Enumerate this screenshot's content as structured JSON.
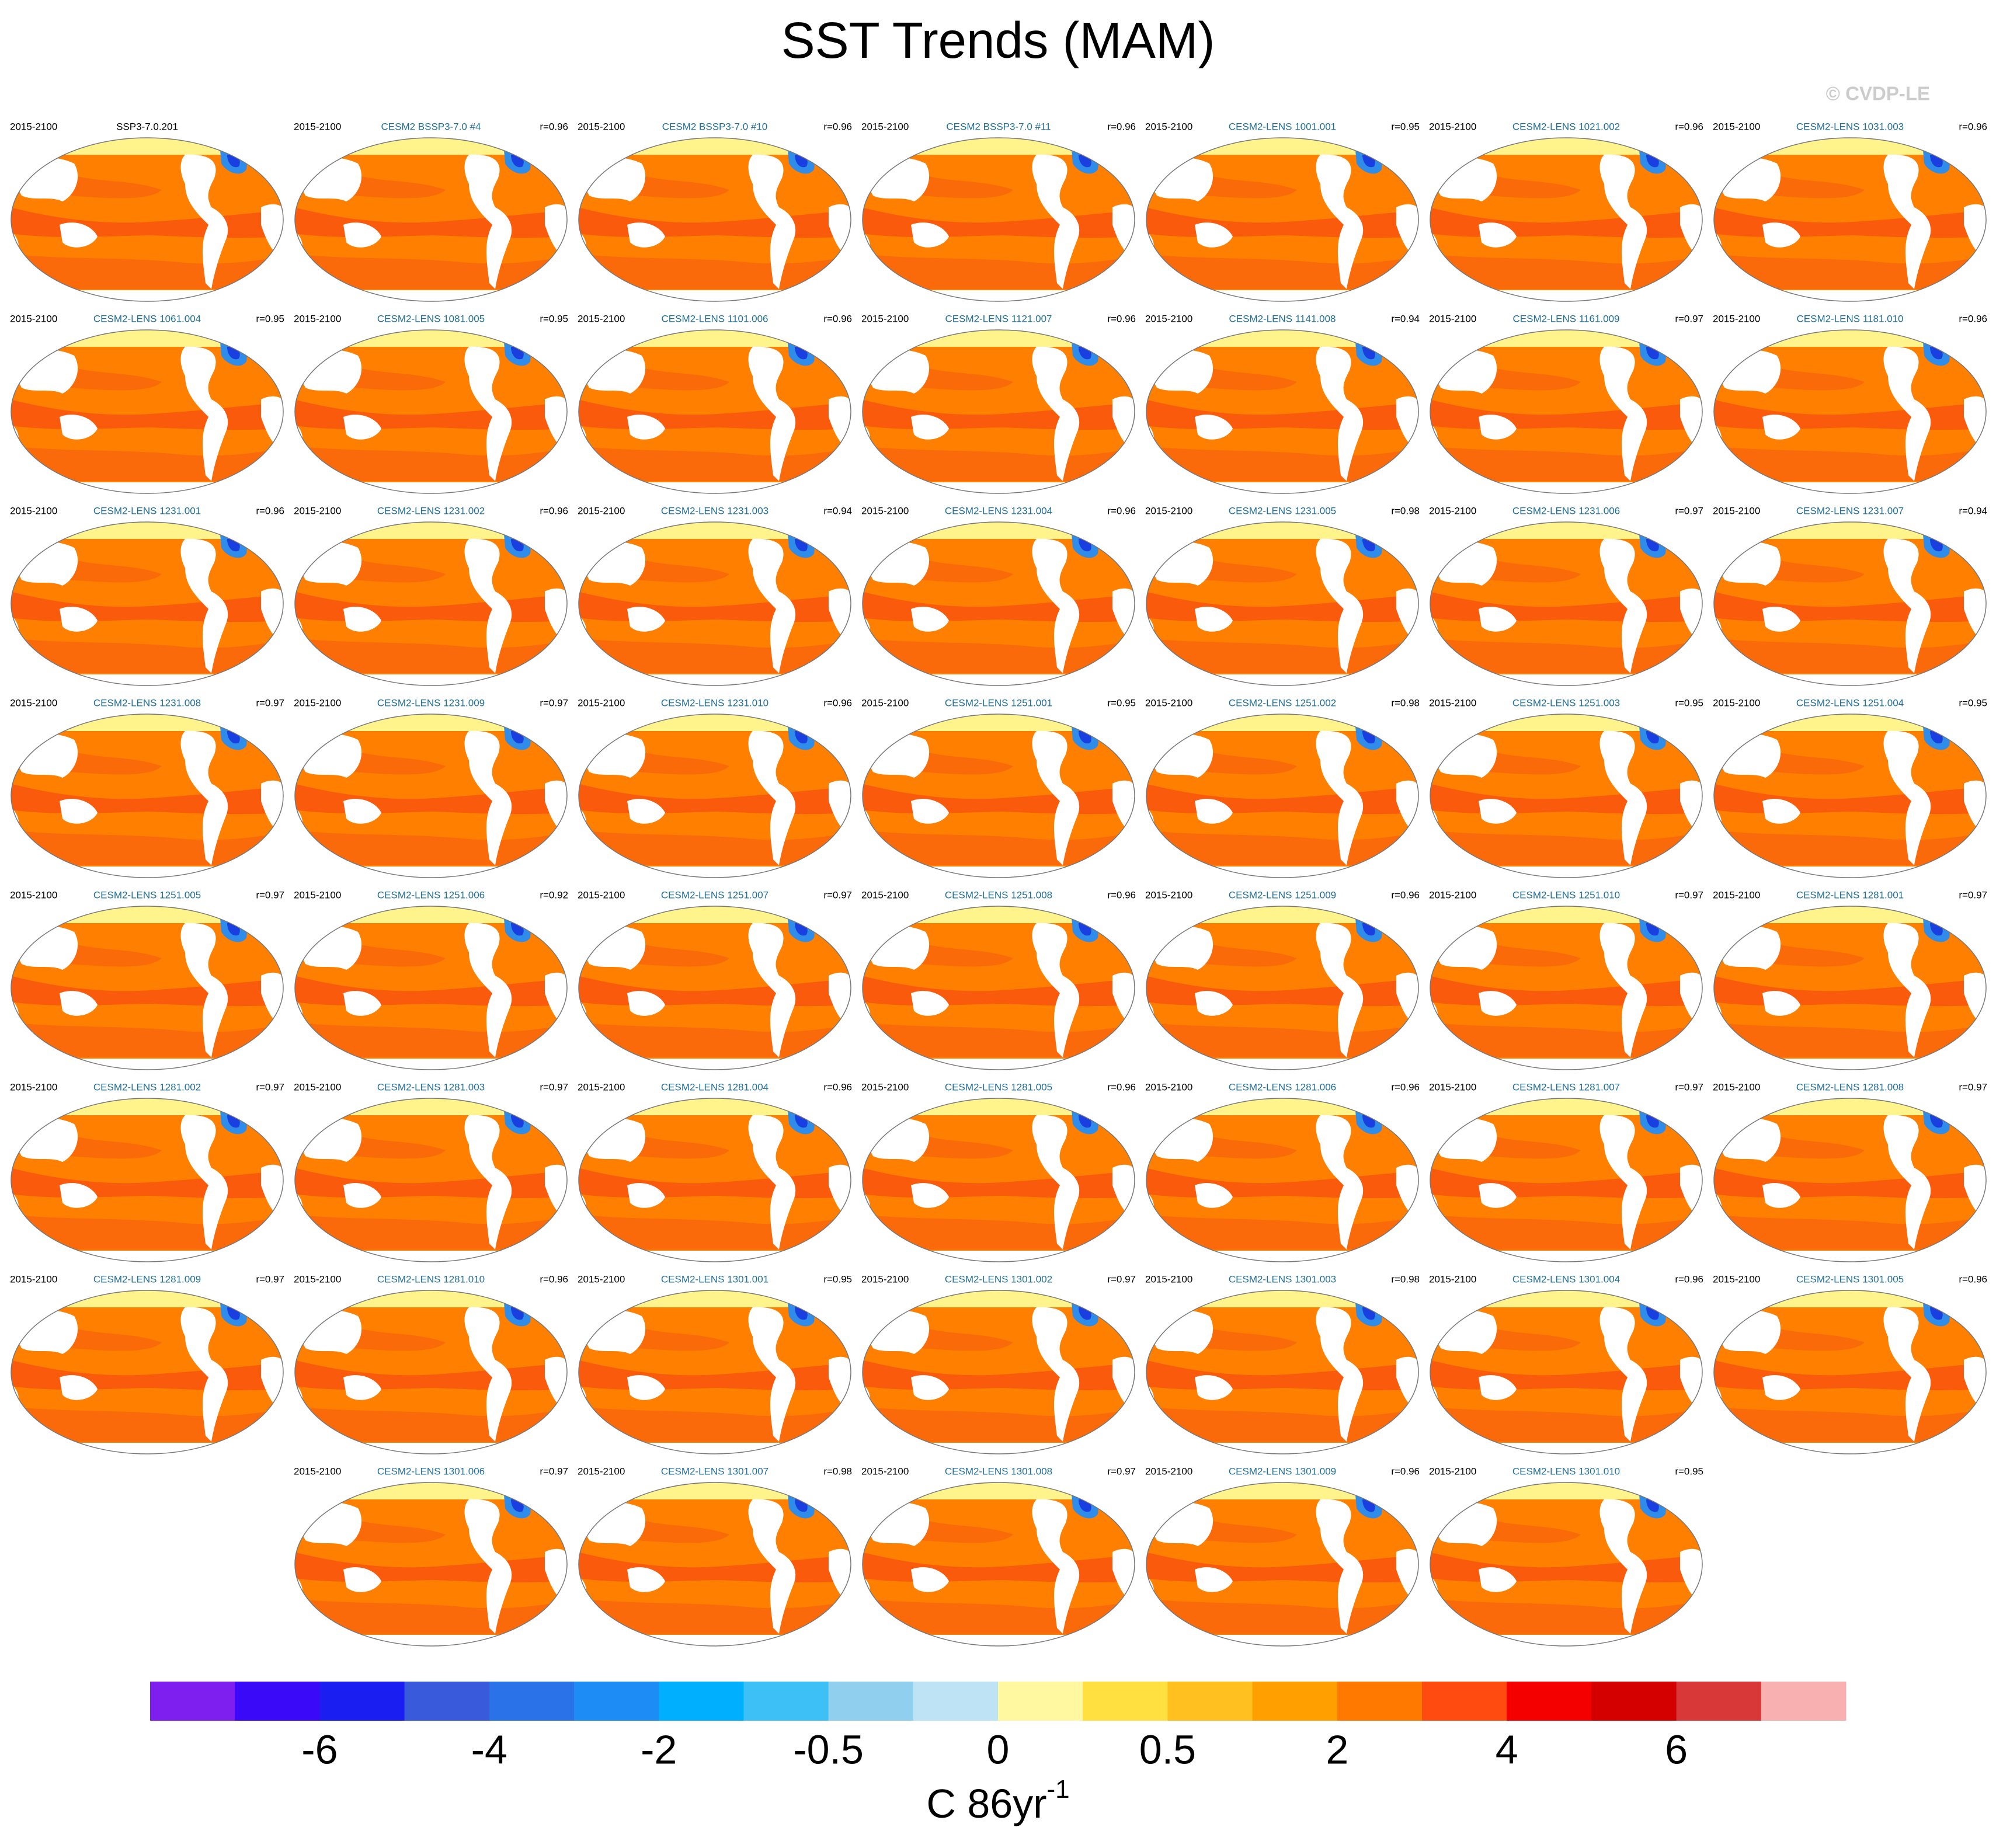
{
  "header": {
    "title": "SST Trends (MAM)",
    "copyright": "© CVDP-LE"
  },
  "panels": [
    {
      "title": "SSP3-7.0.201",
      "period": "2015-2100"
    },
    {
      "title": "CESM2 BSSP3-7.0 #4",
      "period": "2015-2100",
      "r": "r=0.96"
    },
    {
      "title": "CESM2 BSSP3-7.0 #10",
      "period": "2015-2100",
      "r": "r=0.96"
    },
    {
      "title": "CESM2 BSSP3-7.0 #11",
      "period": "2015-2100",
      "r": "r=0.96"
    },
    {
      "title": "CESM2-LENS 1001.001",
      "period": "2015-2100",
      "r": "r=0.95"
    },
    {
      "title": "CESM2-LENS 1021.002",
      "period": "2015-2100",
      "r": "r=0.96"
    },
    {
      "title": "CESM2-LENS 1031.003",
      "period": "2015-2100",
      "r": "r=0.96"
    },
    {
      "title": "CESM2-LENS 1061.004",
      "period": "2015-2100",
      "r": "r=0.95"
    },
    {
      "title": "CESM2-LENS 1081.005",
      "period": "2015-2100",
      "r": "r=0.95"
    },
    {
      "title": "CESM2-LENS 1101.006",
      "period": "2015-2100",
      "r": "r=0.96"
    },
    {
      "title": "CESM2-LENS 1121.007",
      "period": "2015-2100",
      "r": "r=0.96"
    },
    {
      "title": "CESM2-LENS 1141.008",
      "period": "2015-2100",
      "r": "r=0.94"
    },
    {
      "title": "CESM2-LENS 1161.009",
      "period": "2015-2100",
      "r": "r=0.97"
    },
    {
      "title": "CESM2-LENS 1181.010",
      "period": "2015-2100",
      "r": "r=0.96"
    },
    {
      "title": "CESM2-LENS 1231.001",
      "period": "2015-2100",
      "r": "r=0.96"
    },
    {
      "title": "CESM2-LENS 1231.002",
      "period": "2015-2100",
      "r": "r=0.96"
    },
    {
      "title": "CESM2-LENS 1231.003",
      "period": "2015-2100",
      "r": "r=0.94"
    },
    {
      "title": "CESM2-LENS 1231.004",
      "period": "2015-2100",
      "r": "r=0.96"
    },
    {
      "title": "CESM2-LENS 1231.005",
      "period": "2015-2100",
      "r": "r=0.98"
    },
    {
      "title": "CESM2-LENS 1231.006",
      "period": "2015-2100",
      "r": "r=0.97"
    },
    {
      "title": "CESM2-LENS 1231.007",
      "period": "2015-2100",
      "r": "r=0.94"
    },
    {
      "title": "CESM2-LENS 1231.008",
      "period": "2015-2100",
      "r": "r=0.97"
    },
    {
      "title": "CESM2-LENS 1231.009",
      "period": "2015-2100",
      "r": "r=0.97"
    },
    {
      "title": "CESM2-LENS 1231.010",
      "period": "2015-2100",
      "r": "r=0.96"
    },
    {
      "title": "CESM2-LENS 1251.001",
      "period": "2015-2100",
      "r": "r=0.95"
    },
    {
      "title": "CESM2-LENS 1251.002",
      "period": "2015-2100",
      "r": "r=0.98"
    },
    {
      "title": "CESM2-LENS 1251.003",
      "period": "2015-2100",
      "r": "r=0.95"
    },
    {
      "title": "CESM2-LENS 1251.004",
      "period": "2015-2100",
      "r": "r=0.95"
    },
    {
      "title": "CESM2-LENS 1251.005",
      "period": "2015-2100",
      "r": "r=0.97"
    },
    {
      "title": "CESM2-LENS 1251.006",
      "period": "2015-2100",
      "r": "r=0.92"
    },
    {
      "title": "CESM2-LENS 1251.007",
      "period": "2015-2100",
      "r": "r=0.97"
    },
    {
      "title": "CESM2-LENS 1251.008",
      "period": "2015-2100",
      "r": "r=0.96"
    },
    {
      "title": "CESM2-LENS 1251.009",
      "period": "2015-2100",
      "r": "r=0.96"
    },
    {
      "title": "CESM2-LENS 1251.010",
      "period": "2015-2100",
      "r": "r=0.97"
    },
    {
      "title": "CESM2-LENS 1281.001",
      "period": "2015-2100",
      "r": "r=0.97"
    },
    {
      "title": "CESM2-LENS 1281.002",
      "period": "2015-2100",
      "r": "r=0.97"
    },
    {
      "title": "CESM2-LENS 1281.003",
      "period": "2015-2100",
      "r": "r=0.97"
    },
    {
      "title": "CESM2-LENS 1281.004",
      "period": "2015-2100",
      "r": "r=0.96"
    },
    {
      "title": "CESM2-LENS 1281.005",
      "period": "2015-2100",
      "r": "r=0.96"
    },
    {
      "title": "CESM2-LENS 1281.006",
      "period": "2015-2100",
      "r": "r=0.96"
    },
    {
      "title": "CESM2-LENS 1281.007",
      "period": "2015-2100",
      "r": "r=0.97"
    },
    {
      "title": "CESM2-LENS 1281.008",
      "period": "2015-2100",
      "r": "r=0.97"
    },
    {
      "title": "CESM2-LENS 1281.009",
      "period": "2015-2100",
      "r": "r=0.97"
    },
    {
      "title": "CESM2-LENS 1281.010",
      "period": "2015-2100",
      "r": "r=0.96"
    },
    {
      "title": "CESM2-LENS 1301.001",
      "period": "2015-2100",
      "r": "r=0.95"
    },
    {
      "title": "CESM2-LENS 1301.002",
      "period": "2015-2100",
      "r": "r=0.97"
    },
    {
      "title": "CESM2-LENS 1301.003",
      "period": "2015-2100",
      "r": "r=0.98"
    },
    {
      "title": "CESM2-LENS 1301.004",
      "period": "2015-2100",
      "r": "r=0.96"
    },
    {
      "title": "CESM2-LENS 1301.005",
      "period": "2015-2100",
      "r": "r=0.96"
    },
    {
      "title": "CESM2-LENS 1301.006",
      "period": "2015-2100",
      "r": "r=0.97"
    },
    {
      "title": "CESM2-LENS 1301.007",
      "period": "2015-2100",
      "r": "r=0.98"
    },
    {
      "title": "CESM2-LENS 1301.008",
      "period": "2015-2100",
      "r": "r=0.97"
    },
    {
      "title": "CESM2-LENS 1301.009",
      "period": "2015-2100",
      "r": "r=0.96"
    },
    {
      "title": "CESM2-LENS 1301.010",
      "period": "2015-2100",
      "r": "r=0.95"
    }
  ],
  "colorbar": {
    "colors": [
      "#7f1fef",
      "#3a0af8",
      "#1a1ef0",
      "#3a5adc",
      "#2a72e8",
      "#1e8cf5",
      "#00b0ff",
      "#3cc0f5",
      "#90d0ee",
      "#bde3f5",
      "#fff8a0",
      "#ffe040",
      "#ffc020",
      "#ffa000",
      "#ff7800",
      "#ff4a10",
      "#f50000",
      "#d40000",
      "#d83838",
      "#f8b0b0"
    ],
    "labels": [
      "-6",
      "-4",
      "-2",
      "-0.5",
      "0",
      "0.5",
      "2",
      "4",
      "6"
    ],
    "units": {
      "text": "C 86yr",
      "superscript": "-1"
    }
  }
}
